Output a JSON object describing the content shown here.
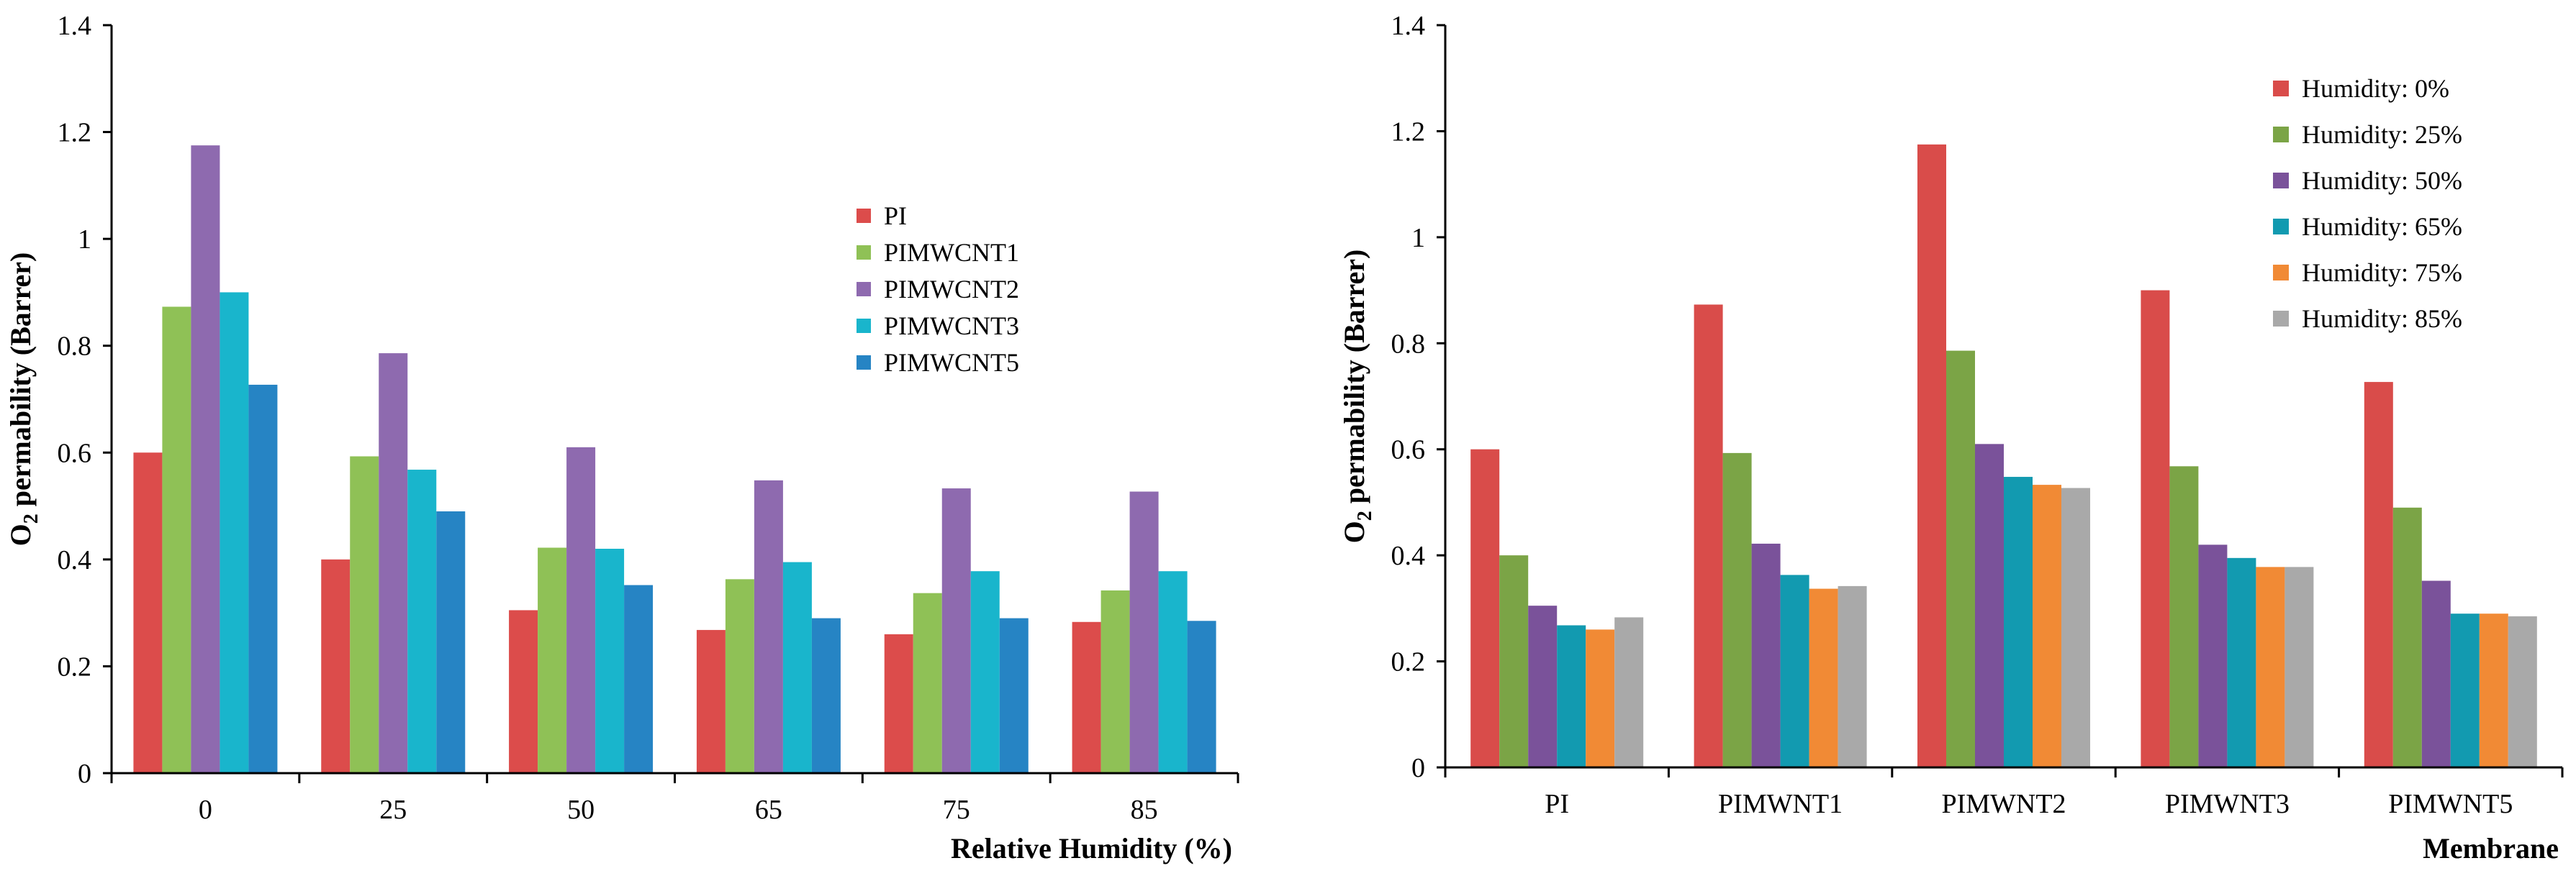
{
  "chart_data": [
    {
      "type": "bar",
      "ylabel_main": "O",
      "ylabel_sub": "2",
      "ylabel_rest": " permability (Barrer)",
      "xlabel": "Relative Humidity (%)",
      "ylim": [
        0,
        1.4
      ],
      "yticks": [
        "0",
        "0.2",
        "0.4",
        "0.6",
        "0.8",
        "1",
        "1.2",
        "1.4"
      ],
      "categories": [
        "0",
        "25",
        "50",
        "65",
        "75",
        "85"
      ],
      "legend_position": "upper-right",
      "series": [
        {
          "name": "PI",
          "color": "#dc4c4b",
          "values": [
            0.6,
            0.4,
            0.305,
            0.268,
            0.26,
            0.283
          ]
        },
        {
          "name": "PIMWCNT1",
          "color": "#8fc156",
          "values": [
            0.873,
            0.593,
            0.422,
            0.363,
            0.337,
            0.342
          ]
        },
        {
          "name": "PIMWCNT2",
          "color": "#8e6aaf",
          "values": [
            1.175,
            0.786,
            0.61,
            0.548,
            0.533,
            0.527
          ]
        },
        {
          "name": "PIMWCNT3",
          "color": "#19b5cc",
          "values": [
            0.9,
            0.568,
            0.42,
            0.395,
            0.378,
            0.378
          ]
        },
        {
          "name": "PIMWCNT5",
          "color": "#2684c4",
          "values": [
            0.727,
            0.49,
            0.352,
            0.29,
            0.29,
            0.285
          ]
        }
      ]
    },
    {
      "type": "bar",
      "ylabel_main": "O",
      "ylabel_sub": "2",
      "ylabel_rest": " permability (Barrer)",
      "xlabel": "Membrane",
      "ylim": [
        0,
        1.4
      ],
      "yticks": [
        "0",
        "0.2",
        "0.4",
        "0.6",
        "0.8",
        "1",
        "1.2",
        "1.4"
      ],
      "categories": [
        "PI",
        "PIMWNT1",
        "PIMWNT2",
        "PIMWNT3",
        "PIMWNT5"
      ],
      "legend_position": "top-right",
      "series": [
        {
          "name": "Humidity: 0%",
          "color": "#d94c4a",
          "values": [
            0.6,
            0.873,
            1.175,
            0.9,
            0.727
          ]
        },
        {
          "name": "Humidity: 25%",
          "color": "#7ba446",
          "values": [
            0.4,
            0.593,
            0.786,
            0.568,
            0.49
          ]
        },
        {
          "name": "Humidity: 50%",
          "color": "#7a529a",
          "values": [
            0.305,
            0.422,
            0.61,
            0.42,
            0.352
          ]
        },
        {
          "name": "Humidity: 65%",
          "color": "#129ab0",
          "values": [
            0.268,
            0.363,
            0.548,
            0.395,
            0.29
          ]
        },
        {
          "name": "Humidity: 75%",
          "color": "#f18a35",
          "values": [
            0.26,
            0.337,
            0.533,
            0.378,
            0.29
          ]
        },
        {
          "name": "Humidity: 85%",
          "color": "#a9a9a9",
          "values": [
            0.283,
            0.342,
            0.527,
            0.378,
            0.285
          ]
        }
      ]
    }
  ]
}
